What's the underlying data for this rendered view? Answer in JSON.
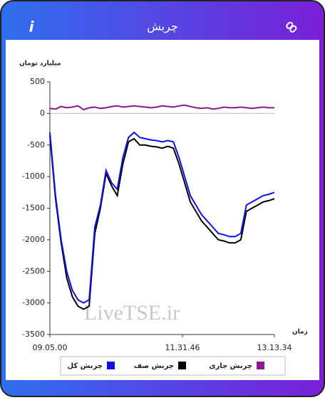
{
  "header": {
    "title": "چربش",
    "info": "i"
  },
  "watermark": "LiveTSE.ir",
  "chart_data": {
    "type": "line",
    "ylabel": "میلیارد تومان",
    "xlabel": "زمان",
    "x": [
      32700,
      33073,
      33446,
      33819,
      34192,
      34565,
      34938,
      35311,
      35684,
      36057,
      36430,
      36803,
      37176,
      37549,
      37922,
      38295,
      38668,
      39041,
      39414,
      39787,
      40160,
      40533,
      40906,
      41279,
      41652,
      42025,
      42398,
      42771,
      43144,
      43517,
      43890,
      44263,
      44636,
      45009,
      45382,
      45755,
      46128,
      46501,
      46874,
      47247,
      47614
    ],
    "xlim": [
      32700,
      47614
    ],
    "xticks": [
      {
        "value": 32700,
        "label": "09.05.00"
      },
      {
        "value": 41506,
        "label": "11.31.46"
      },
      {
        "value": 47614,
        "label": "13.13.34"
      }
    ],
    "ylim": [
      -3500,
      500
    ],
    "yticks": [
      500,
      0,
      -500,
      -1000,
      -1500,
      -2000,
      -2500,
      -3000,
      -3500
    ],
    "series": [
      {
        "name": "چربش کل",
        "color": "#1010e0",
        "values": [
          -300,
          -1300,
          -2000,
          -2500,
          -2800,
          -2950,
          -3000,
          -2950,
          -1800,
          -1450,
          -900,
          -1100,
          -1200,
          -700,
          -380,
          -300,
          -380,
          -400,
          -420,
          -430,
          -450,
          -430,
          -450,
          -700,
          -1000,
          -1300,
          -1450,
          -1600,
          -1700,
          -1800,
          -1900,
          -1920,
          -1950,
          -1950,
          -1900,
          -1450,
          -1400,
          -1350,
          -1300,
          -1280,
          -1250
        ]
      },
      {
        "name": "چربش صف",
        "color": "#000000",
        "values": [
          -350,
          -1350,
          -2050,
          -2600,
          -2900,
          -3050,
          -3100,
          -3050,
          -1900,
          -1500,
          -950,
          -1150,
          -1300,
          -800,
          -450,
          -400,
          -500,
          -500,
          -520,
          -530,
          -550,
          -520,
          -550,
          -800,
          -1100,
          -1400,
          -1550,
          -1700,
          -1800,
          -1900,
          -2000,
          -2020,
          -2050,
          -2050,
          -2000,
          -1550,
          -1500,
          -1450,
          -1400,
          -1380,
          -1350
        ]
      },
      {
        "name": "چربش جاری",
        "color": "#8b1a8b",
        "values": [
          80,
          70,
          110,
          90,
          100,
          120,
          60,
          90,
          100,
          80,
          90,
          110,
          120,
          100,
          110,
          120,
          110,
          100,
          90,
          100,
          120,
          110,
          100,
          120,
          130,
          110,
          90,
          80,
          90,
          70,
          80,
          100,
          90,
          90,
          100,
          90,
          80,
          90,
          100,
          90,
          90
        ]
      }
    ]
  }
}
